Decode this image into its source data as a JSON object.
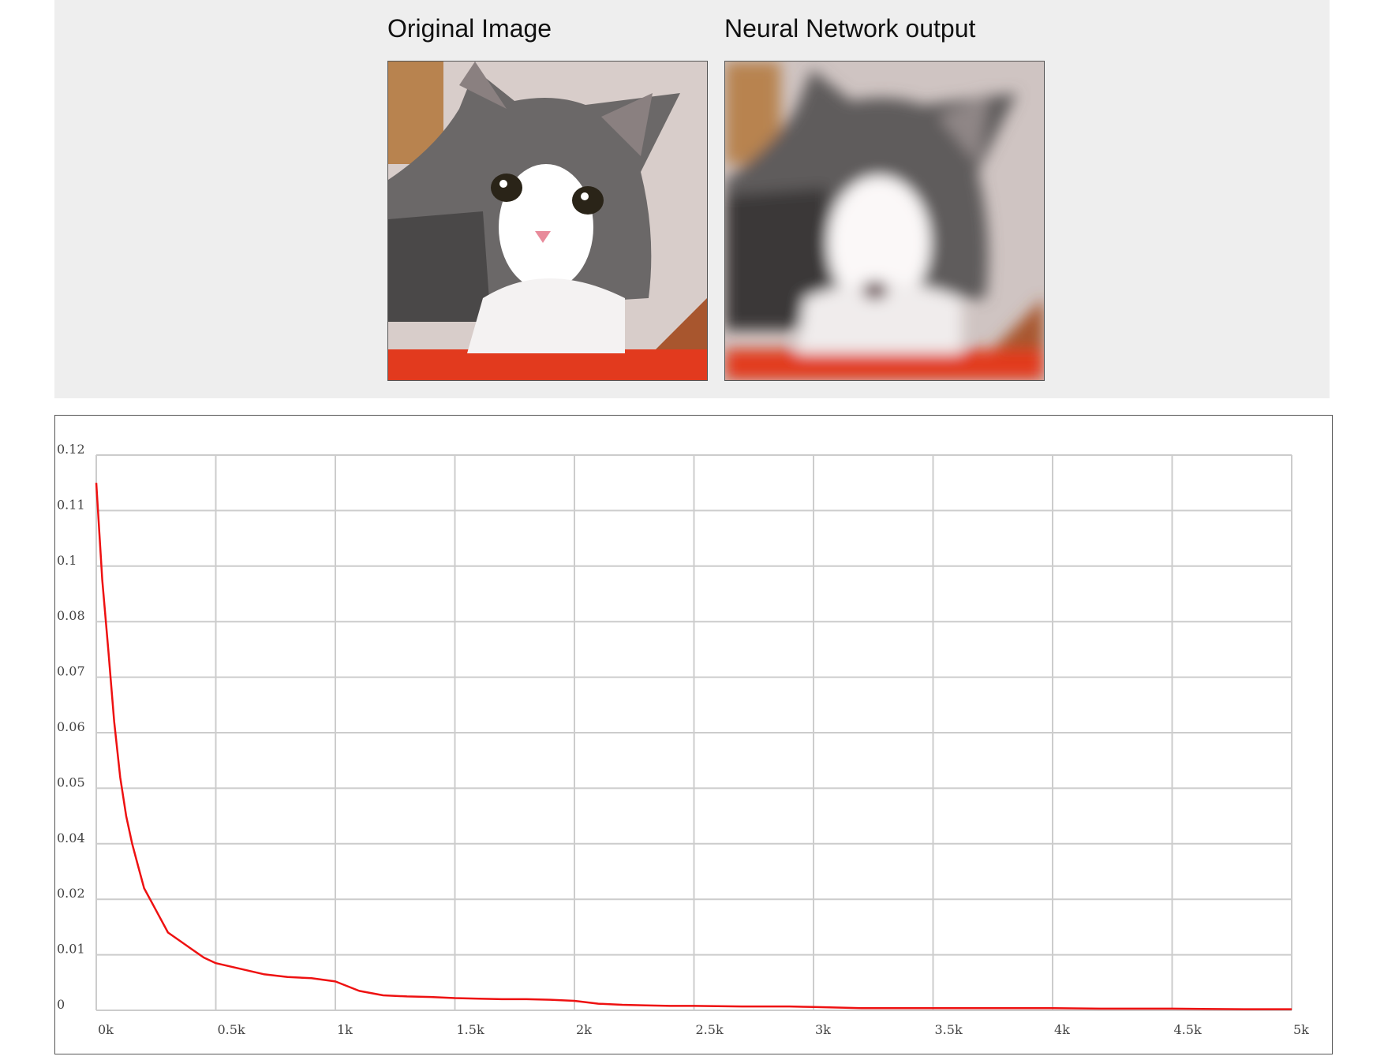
{
  "panels": {
    "original": {
      "caption": "Original Image",
      "icon": "kitten-photo-icon"
    },
    "output": {
      "caption": "Neural Network output",
      "icon": "kitten-blurred-photo-icon"
    }
  },
  "colors": {
    "panel_background": "#eeeeee",
    "grid": "#cccccc",
    "line": "#ee1111"
  },
  "chart_data": {
    "type": "line",
    "title": "",
    "xlabel": "",
    "ylabel": "",
    "xlim": [
      0,
      5000
    ],
    "grid": true,
    "legend": "none",
    "x_ticks": [
      "0k",
      "0.5k",
      "1k",
      "1.5k",
      "2k",
      "2.5k",
      "3k",
      "3.5k",
      "4k",
      "4.5k",
      "5k"
    ],
    "y_ticks": [
      "0",
      "0.01",
      "0.02",
      "0.04",
      "0.05",
      "0.06",
      "0.07",
      "0.08",
      "0.1",
      "0.11",
      "0.12"
    ],
    "y_scale_note": "tick labels are evenly spaced; values listed are read off the printed labels",
    "series": [
      {
        "color": "#ee1111",
        "x": [
          0,
          25,
          50,
          75,
          100,
          125,
          150,
          175,
          200,
          250,
          300,
          350,
          400,
          450,
          500,
          600,
          700,
          800,
          900,
          1000,
          1100,
          1200,
          1300,
          1400,
          1500,
          1600,
          1700,
          1800,
          1900,
          2000,
          2100,
          2200,
          2300,
          2400,
          2500,
          2700,
          2900,
          3000,
          3200,
          3500,
          3800,
          4000,
          4200,
          4500,
          4800,
          5000
        ],
        "y": [
          0.115,
          0.095,
          0.075,
          0.062,
          0.052,
          0.045,
          0.04,
          0.032,
          0.024,
          0.018,
          0.014,
          0.0125,
          0.011,
          0.0095,
          0.0085,
          0.0075,
          0.0065,
          0.006,
          0.0058,
          0.0052,
          0.0035,
          0.0027,
          0.0025,
          0.0024,
          0.0022,
          0.0021,
          0.002,
          0.002,
          0.0019,
          0.0017,
          0.0012,
          0.001,
          0.0009,
          0.0008,
          0.0008,
          0.0007,
          0.0007,
          0.0006,
          0.0004,
          0.0004,
          0.0004,
          0.0004,
          0.0003,
          0.0003,
          0.0002,
          0.0002
        ]
      }
    ]
  }
}
